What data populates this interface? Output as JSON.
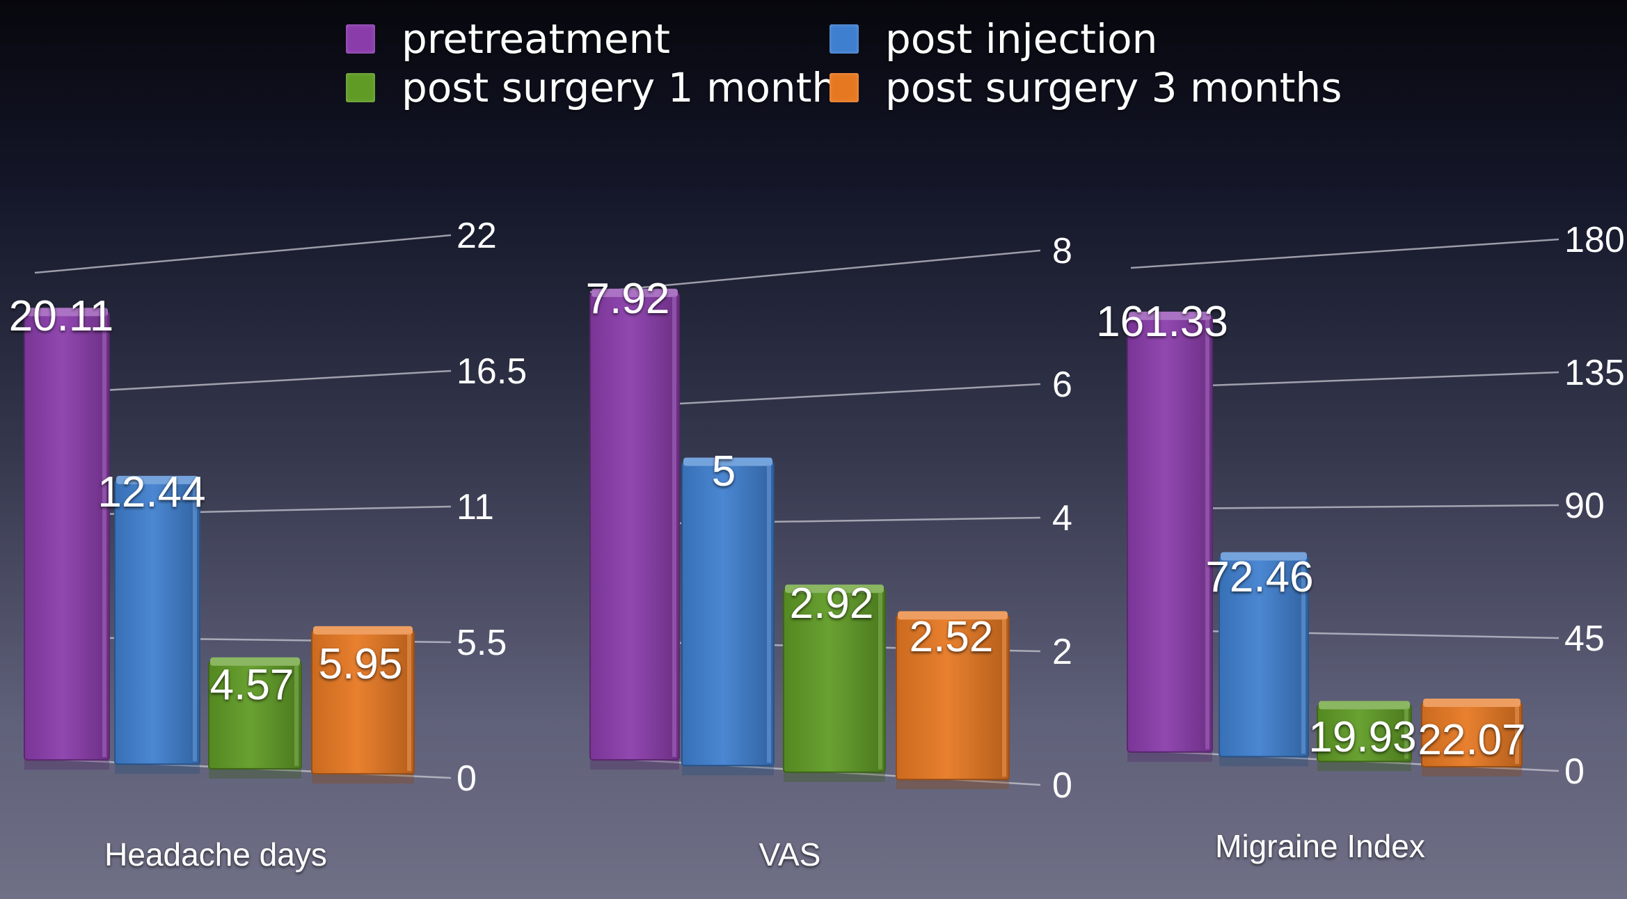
{
  "legend": [
    {
      "label": "pretreatment",
      "color": "#8a3cab"
    },
    {
      "label": "post injection",
      "color": "#3f7fcf"
    },
    {
      "label": "post surgery 1 month",
      "color": "#5f9b25"
    },
    {
      "label": "post surgery 3 months",
      "color": "#e77822"
    }
  ],
  "chart_data": [
    {
      "type": "bar",
      "xlabel": "Headache days",
      "series": [
        {
          "name": "pretreatment",
          "values": [
            20.11
          ]
        },
        {
          "name": "post injection",
          "values": [
            12.44
          ]
        },
        {
          "name": "post surgery 1 month",
          "values": [
            4.57
          ]
        },
        {
          "name": "post surgery 3 months",
          "values": [
            5.95
          ]
        }
      ],
      "data_labels": [
        "20.11",
        "12.44",
        "4.57",
        "5.95"
      ],
      "ylim": [
        0,
        22
      ],
      "ticks": [
        "0",
        "5.5",
        "11",
        "16.5",
        "22"
      ],
      "grid": true
    },
    {
      "type": "bar",
      "xlabel": "VAS",
      "series": [
        {
          "name": "pretreatment",
          "values": [
            7.92
          ]
        },
        {
          "name": "post injection",
          "values": [
            5
          ]
        },
        {
          "name": "post surgery 1 month",
          "values": [
            2.92
          ]
        },
        {
          "name": "post surgery 3 months",
          "values": [
            2.52
          ]
        }
      ],
      "data_labels": [
        "7.92",
        "5",
        "2.92",
        "2.52"
      ],
      "ylim": [
        0,
        8
      ],
      "ticks": [
        "0",
        "2",
        "4",
        "6",
        "8"
      ],
      "grid": true
    },
    {
      "type": "bar",
      "xlabel": "Migraine Index",
      "series": [
        {
          "name": "pretreatment",
          "values": [
            161.33
          ]
        },
        {
          "name": "post injection",
          "values": [
            72.46
          ]
        },
        {
          "name": "post surgery 1 month",
          "values": [
            19.93
          ]
        },
        {
          "name": "post surgery 3 months",
          "values": [
            22.07
          ]
        }
      ],
      "data_labels": [
        "161.33",
        "72.46",
        "19.93",
        "22.07"
      ],
      "ylim": [
        0,
        180
      ],
      "ticks": [
        "0",
        "45",
        "90",
        "135",
        "180"
      ],
      "grid": true
    }
  ]
}
